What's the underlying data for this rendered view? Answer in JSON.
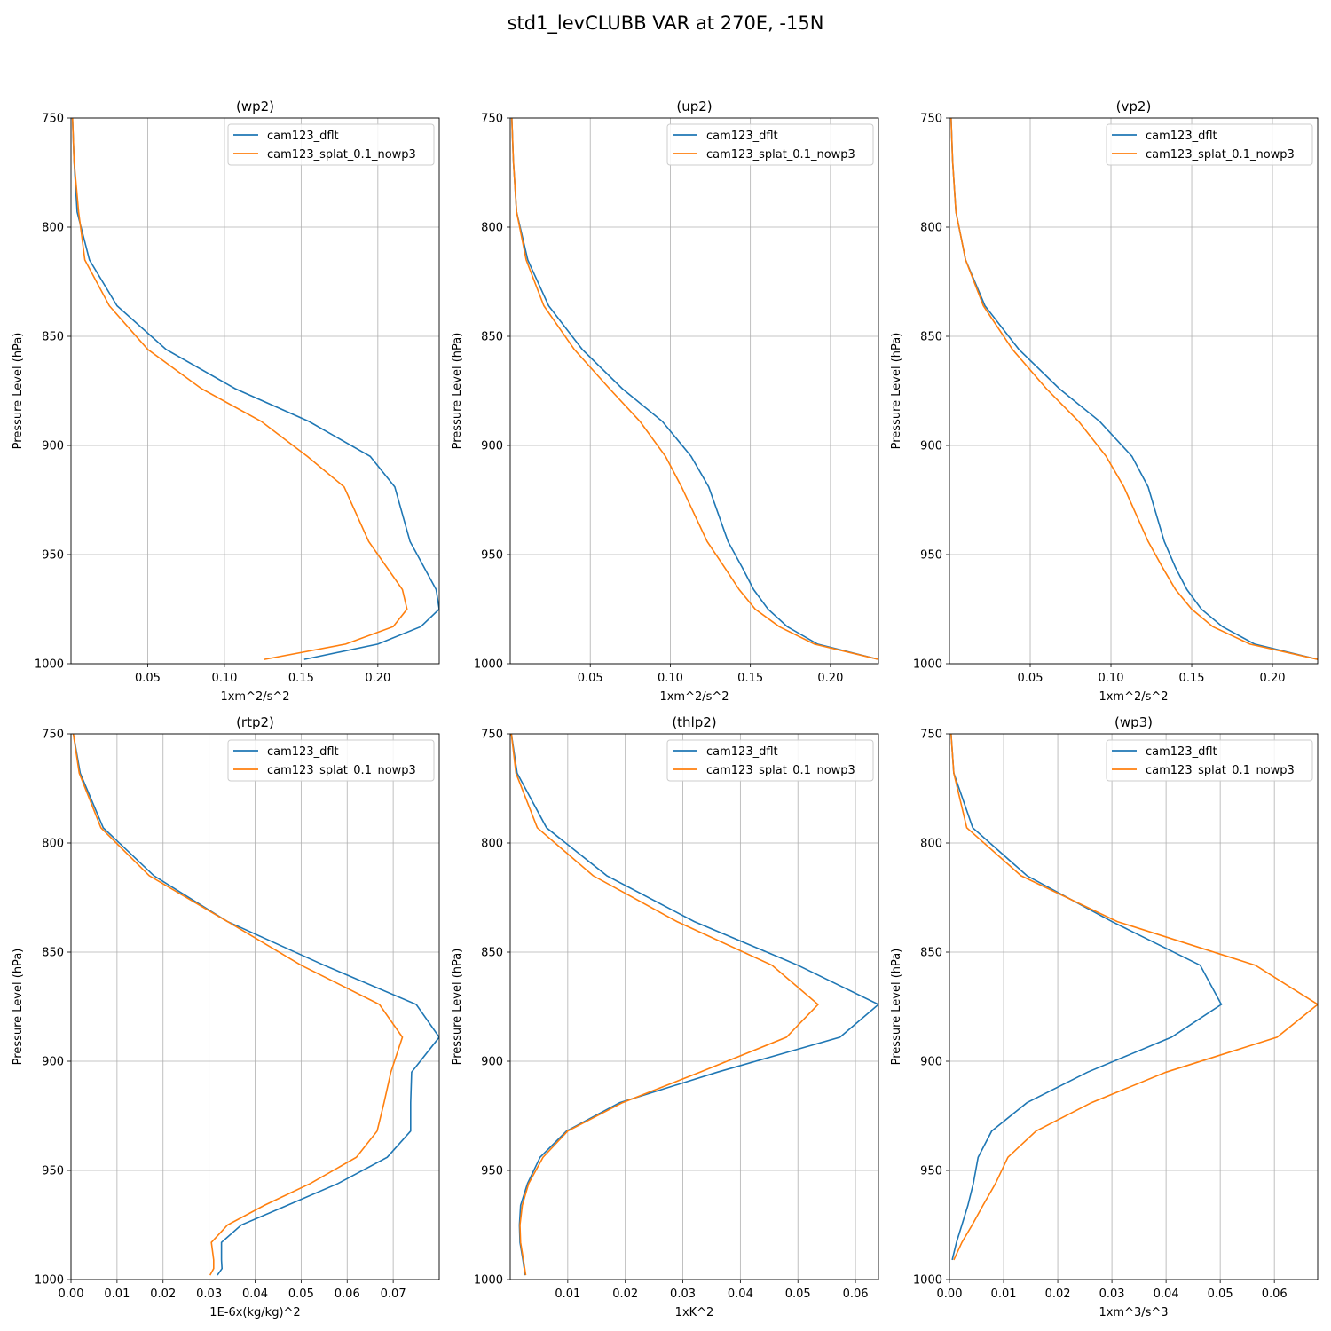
{
  "figure": {
    "title": "std1_levCLUBB VAR at 270E, -15N",
    "colors": {
      "cam123_dflt": "#1f77b4",
      "cam123_splat_0.1_nowp3": "#ff7f0e"
    }
  },
  "chart_data": [
    {
      "type": "line",
      "title": "(wp2)",
      "xlabel": "1xm^2/s^2",
      "ylabel": "Pressure Level (hPa)",
      "xlim": [
        0.0,
        0.24
      ],
      "ylim": [
        1000,
        750
      ],
      "xticks": [
        0.05,
        0.1,
        0.15,
        0.2
      ],
      "xtick_labels": [
        "0.05",
        "0.10",
        "0.15",
        "0.20"
      ],
      "yticks": [
        750,
        800,
        850,
        900,
        950,
        1000
      ],
      "ytick_labels": [
        "750",
        "800",
        "850",
        "900",
        "950",
        "1000"
      ],
      "grid": true,
      "legend": "top-right",
      "series": [
        {
          "name": "cam123_dflt",
          "color": "#1f77b4",
          "x": [
            0.001,
            0.002,
            0.004,
            0.012,
            0.03,
            0.062,
            0.107,
            0.155,
            0.195,
            0.211,
            0.221,
            0.238,
            0.24,
            0.228,
            0.2,
            0.152
          ],
          "y": [
            750,
            770,
            793,
            815,
            836,
            856,
            874,
            889,
            905,
            919,
            944,
            966,
            975,
            983,
            991,
            998
          ]
        },
        {
          "name": "cam123_splat_0.1_nowp3",
          "color": "#ff7f0e",
          "x": [
            0.001,
            0.002,
            0.005,
            0.009,
            0.025,
            0.05,
            0.085,
            0.124,
            0.154,
            0.178,
            0.194,
            0.216,
            0.219,
            0.21,
            0.179,
            0.126
          ],
          "y": [
            750,
            770,
            793,
            815,
            836,
            856,
            874,
            889,
            905,
            919,
            944,
            966,
            975,
            983,
            991,
            998
          ]
        }
      ]
    },
    {
      "type": "line",
      "title": "(up2)",
      "xlabel": "1xm^2/s^2",
      "ylabel": "Pressure Level (hPa)",
      "xlim": [
        0.0,
        0.23
      ],
      "ylim": [
        1000,
        750
      ],
      "xticks": [
        0.05,
        0.1,
        0.15,
        0.2
      ],
      "xtick_labels": [
        "0.05",
        "0.10",
        "0.15",
        "0.20"
      ],
      "yticks": [
        750,
        800,
        850,
        900,
        950,
        1000
      ],
      "ytick_labels": [
        "750",
        "800",
        "850",
        "900",
        "950",
        "1000"
      ],
      "grid": true,
      "legend": "top-right",
      "series": [
        {
          "name": "cam123_dflt",
          "color": "#1f77b4",
          "x": [
            0.001,
            0.002,
            0.004,
            0.011,
            0.024,
            0.045,
            0.07,
            0.095,
            0.113,
            0.124,
            0.136,
            0.145,
            0.152,
            0.161,
            0.173,
            0.192,
            0.23
          ],
          "y": [
            750,
            770,
            793,
            815,
            836,
            856,
            874,
            889,
            905,
            919,
            944,
            956,
            966,
            975,
            983,
            991,
            998
          ]
        },
        {
          "name": "cam123_splat_0.1_nowp3",
          "color": "#ff7f0e",
          "x": [
            0.001,
            0.002,
            0.004,
            0.01,
            0.021,
            0.04,
            0.062,
            0.081,
            0.097,
            0.107,
            0.123,
            0.134,
            0.143,
            0.153,
            0.168,
            0.19,
            0.23
          ],
          "y": [
            750,
            770,
            793,
            815,
            836,
            856,
            874,
            889,
            905,
            919,
            944,
            956,
            966,
            975,
            983,
            991,
            998
          ]
        }
      ]
    },
    {
      "type": "line",
      "title": "(vp2)",
      "xlabel": "1xm^2/s^2",
      "ylabel": "Pressure Level (hPa)",
      "xlim": [
        0.0,
        0.228
      ],
      "ylim": [
        1000,
        750
      ],
      "xticks": [
        0.05,
        0.1,
        0.15,
        0.2
      ],
      "xtick_labels": [
        "0.05",
        "0.10",
        "0.15",
        "0.20"
      ],
      "yticks": [
        750,
        800,
        850,
        900,
        950,
        1000
      ],
      "ytick_labels": [
        "750",
        "800",
        "850",
        "900",
        "950",
        "1000"
      ],
      "grid": true,
      "legend": "top-right",
      "series": [
        {
          "name": "cam123_dflt",
          "color": "#1f77b4",
          "x": [
            0.001,
            0.002,
            0.004,
            0.01,
            0.022,
            0.043,
            0.068,
            0.093,
            0.113,
            0.123,
            0.133,
            0.14,
            0.147,
            0.156,
            0.169,
            0.189,
            0.228
          ],
          "y": [
            750,
            770,
            793,
            815,
            836,
            856,
            874,
            889,
            905,
            919,
            944,
            956,
            966,
            975,
            983,
            991,
            998
          ]
        },
        {
          "name": "cam123_splat_0.1_nowp3",
          "color": "#ff7f0e",
          "x": [
            0.001,
            0.002,
            0.004,
            0.01,
            0.021,
            0.039,
            0.06,
            0.08,
            0.097,
            0.108,
            0.123,
            0.132,
            0.14,
            0.15,
            0.163,
            0.186,
            0.228
          ],
          "y": [
            750,
            770,
            793,
            815,
            836,
            856,
            874,
            889,
            905,
            919,
            944,
            956,
            966,
            975,
            983,
            991,
            998
          ]
        }
      ]
    },
    {
      "type": "line",
      "title": "(rtp2)",
      "xlabel": "1E-6x(kg/kg)^2",
      "ylabel": "Pressure Level (hPa)",
      "xlim": [
        0.0,
        0.08
      ],
      "ylim": [
        1000,
        750
      ],
      "xticks": [
        0.0,
        0.01,
        0.02,
        0.03,
        0.04,
        0.05,
        0.06,
        0.07
      ],
      "xtick_labels": [
        "0.00",
        "0.01",
        "0.02",
        "0.03",
        "0.04",
        "0.05",
        "0.06",
        "0.07"
      ],
      "yticks": [
        750,
        800,
        850,
        900,
        950,
        1000
      ],
      "ytick_labels": [
        "750",
        "800",
        "850",
        "900",
        "950",
        "1000"
      ],
      "grid": true,
      "legend": "top-right",
      "series": [
        {
          "name": "cam123_dflt",
          "color": "#1f77b4",
          "x": [
            0.0005,
            0.002,
            0.007,
            0.018,
            0.034,
            0.055,
            0.075,
            0.08,
            0.074,
            0.0738,
            0.0738,
            0.0687,
            0.058,
            0.047,
            0.037,
            0.0327,
            0.0327,
            0.0328,
            0.0318
          ],
          "y": [
            750,
            768,
            793,
            815,
            836,
            856,
            874,
            889,
            905,
            919,
            932,
            944,
            956,
            966,
            975,
            983,
            991,
            995,
            998
          ]
        },
        {
          "name": "cam123_splat_0.1_nowp3",
          "color": "#ff7f0e",
          "x": [
            0.0005,
            0.0018,
            0.0065,
            0.017,
            0.034,
            0.05,
            0.067,
            0.072,
            0.0695,
            0.068,
            0.0665,
            0.062,
            0.052,
            0.042,
            0.034,
            0.0305,
            0.031,
            0.031,
            0.0302
          ],
          "y": [
            750,
            768,
            793,
            815,
            836,
            856,
            874,
            889,
            905,
            919,
            932,
            944,
            956,
            966,
            975,
            983,
            991,
            995,
            998
          ]
        }
      ]
    },
    {
      "type": "line",
      "title": "(thlp2)",
      "xlabel": "1xK^2",
      "ylabel": "Pressure Level (hPa)",
      "xlim": [
        0.0,
        0.064
      ],
      "ylim": [
        1000,
        750
      ],
      "xticks": [
        0.01,
        0.02,
        0.03,
        0.04,
        0.05,
        0.06
      ],
      "xtick_labels": [
        "0.01",
        "0.02",
        "0.03",
        "0.04",
        "0.05",
        "0.06"
      ],
      "yticks": [
        750,
        800,
        850,
        900,
        950,
        1000
      ],
      "ytick_labels": [
        "750",
        "800",
        "850",
        "900",
        "950",
        "1000"
      ],
      "grid": true,
      "legend": "top-right",
      "series": [
        {
          "name": "cam123_dflt",
          "color": "#1f77b4",
          "x": [
            0.0002,
            0.0012,
            0.0063,
            0.0168,
            0.032,
            0.05,
            0.064,
            0.0573,
            0.036,
            0.019,
            0.0098,
            0.0052,
            0.003,
            0.0018,
            0.0016,
            0.0017,
            0.0022,
            0.0026
          ],
          "y": [
            750,
            768,
            793,
            815,
            836,
            856,
            874,
            889,
            905,
            919,
            932,
            944,
            956,
            966,
            975,
            983,
            991,
            998
          ]
        },
        {
          "name": "cam123_splat_0.1_nowp3",
          "color": "#ff7f0e",
          "x": [
            0.0002,
            0.001,
            0.0047,
            0.0144,
            0.029,
            0.0455,
            0.0535,
            0.048,
            0.033,
            0.0195,
            0.01,
            0.0057,
            0.0032,
            0.0021,
            0.0017,
            0.0018,
            0.0023,
            0.0027
          ],
          "y": [
            750,
            768,
            793,
            815,
            836,
            856,
            874,
            889,
            905,
            919,
            932,
            944,
            956,
            966,
            975,
            983,
            991,
            998
          ]
        }
      ]
    },
    {
      "type": "line",
      "title": "(wp3)",
      "xlabel": "1xm^3/s^3",
      "ylabel": "Pressure Level (hPa)",
      "xlim": [
        0.0,
        0.068
      ],
      "ylim": [
        1000,
        750
      ],
      "xticks": [
        0.0,
        0.01,
        0.02,
        0.03,
        0.04,
        0.05,
        0.06
      ],
      "xtick_labels": [
        "0.00",
        "0.01",
        "0.02",
        "0.03",
        "0.04",
        "0.05",
        "0.06"
      ],
      "yticks": [
        750,
        800,
        850,
        900,
        950,
        1000
      ],
      "ytick_labels": [
        "750",
        "800",
        "850",
        "900",
        "950",
        "1000"
      ],
      "grid": true,
      "legend": "top-right",
      "series": [
        {
          "name": "cam123_dflt",
          "color": "#1f77b4",
          "x": [
            0.0003,
            0.0008,
            0.0043,
            0.0143,
            0.03,
            0.0463,
            0.0502,
            0.041,
            0.0255,
            0.0143,
            0.0078,
            0.0053,
            0.0044,
            0.0034,
            0.0023,
            0.0013,
            0.0005
          ],
          "y": [
            750,
            768,
            793,
            815,
            836,
            856,
            874,
            889,
            905,
            919,
            932,
            944,
            956,
            966,
            975,
            983,
            991
          ]
        },
        {
          "name": "cam123_splat_0.1_nowp3",
          "color": "#ff7f0e",
          "x": [
            0.0003,
            0.0008,
            0.0032,
            0.0132,
            0.031,
            0.0565,
            0.068,
            0.0605,
            0.04,
            0.0262,
            0.016,
            0.0108,
            0.0085,
            0.0062,
            0.0042,
            0.0023,
            0.0008
          ],
          "y": [
            750,
            768,
            793,
            815,
            836,
            856,
            874,
            889,
            905,
            919,
            932,
            944,
            956,
            966,
            975,
            983,
            991
          ]
        }
      ]
    }
  ]
}
